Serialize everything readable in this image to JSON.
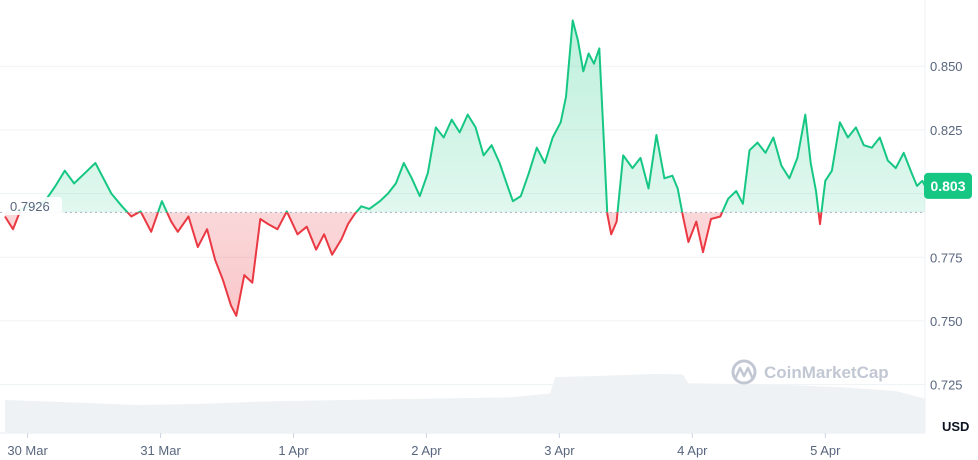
{
  "chart_data": {
    "type": "area",
    "watermark": "CoinMarketCap",
    "unit_label": "USD",
    "baseline": {
      "value": 0.7926,
      "label": "0.7926"
    },
    "current": {
      "value": 0.803,
      "label": "0.803"
    },
    "ylim": [
      0.706,
      0.876
    ],
    "y_ticks": [
      {
        "value": 0.725,
        "label": "0.725"
      },
      {
        "value": 0.75,
        "label": "0.750"
      },
      {
        "value": 0.775,
        "label": "0.775"
      },
      {
        "value": 0.8,
        "label": ""
      },
      {
        "value": 0.825,
        "label": "0.825"
      },
      {
        "value": 0.85,
        "label": "0.850"
      }
    ],
    "x_range": [
      0,
      6.92
    ],
    "x_ticks": [
      {
        "value": 0.17,
        "label": "30 Mar"
      },
      {
        "value": 1.17,
        "label": "31 Mar"
      },
      {
        "value": 2.17,
        "label": "1 Apr"
      },
      {
        "value": 3.17,
        "label": "2 Apr"
      },
      {
        "value": 4.17,
        "label": "3 Apr"
      },
      {
        "value": 5.17,
        "label": "4 Apr"
      },
      {
        "value": 6.17,
        "label": "5 Apr"
      }
    ],
    "colors": {
      "up": "#16c784",
      "down": "#ea3943",
      "up_fill": "#16c784",
      "down_fill": "#ea3943",
      "volume": "#eff2f5",
      "current_badge": "#16c784"
    },
    "price": [
      [
        0.0,
        0.791
      ],
      [
        0.06,
        0.786
      ],
      [
        0.12,
        0.794
      ],
      [
        0.2,
        0.795
      ],
      [
        0.3,
        0.797
      ],
      [
        0.38,
        0.803
      ],
      [
        0.45,
        0.809
      ],
      [
        0.52,
        0.804
      ],
      [
        0.6,
        0.808
      ],
      [
        0.68,
        0.812
      ],
      [
        0.74,
        0.806
      ],
      [
        0.8,
        0.8
      ],
      [
        0.88,
        0.795
      ],
      [
        0.95,
        0.791
      ],
      [
        1.02,
        0.793
      ],
      [
        1.1,
        0.785
      ],
      [
        1.18,
        0.797
      ],
      [
        1.25,
        0.789
      ],
      [
        1.3,
        0.785
      ],
      [
        1.38,
        0.791
      ],
      [
        1.45,
        0.779
      ],
      [
        1.52,
        0.786
      ],
      [
        1.58,
        0.774
      ],
      [
        1.64,
        0.766
      ],
      [
        1.7,
        0.756
      ],
      [
        1.74,
        0.752
      ],
      [
        1.8,
        0.768
      ],
      [
        1.86,
        0.765
      ],
      [
        1.92,
        0.79
      ],
      [
        1.98,
        0.788
      ],
      [
        2.05,
        0.786
      ],
      [
        2.12,
        0.793
      ],
      [
        2.2,
        0.784
      ],
      [
        2.27,
        0.787
      ],
      [
        2.34,
        0.778
      ],
      [
        2.4,
        0.784
      ],
      [
        2.46,
        0.776
      ],
      [
        2.53,
        0.782
      ],
      [
        2.58,
        0.788
      ],
      [
        2.63,
        0.792
      ],
      [
        2.68,
        0.795
      ],
      [
        2.74,
        0.794
      ],
      [
        2.82,
        0.797
      ],
      [
        2.88,
        0.8
      ],
      [
        2.94,
        0.804
      ],
      [
        3.0,
        0.812
      ],
      [
        3.06,
        0.806
      ],
      [
        3.12,
        0.799
      ],
      [
        3.18,
        0.808
      ],
      [
        3.24,
        0.826
      ],
      [
        3.3,
        0.822
      ],
      [
        3.36,
        0.829
      ],
      [
        3.42,
        0.824
      ],
      [
        3.48,
        0.831
      ],
      [
        3.54,
        0.826
      ],
      [
        3.6,
        0.815
      ],
      [
        3.66,
        0.819
      ],
      [
        3.72,
        0.812
      ],
      [
        3.78,
        0.803
      ],
      [
        3.82,
        0.797
      ],
      [
        3.88,
        0.799
      ],
      [
        3.94,
        0.808
      ],
      [
        4.0,
        0.818
      ],
      [
        4.06,
        0.812
      ],
      [
        4.12,
        0.822
      ],
      [
        4.18,
        0.828
      ],
      [
        4.22,
        0.838
      ],
      [
        4.27,
        0.868
      ],
      [
        4.31,
        0.86
      ],
      [
        4.35,
        0.848
      ],
      [
        4.39,
        0.855
      ],
      [
        4.43,
        0.851
      ],
      [
        4.47,
        0.857
      ],
      [
        4.5,
        0.825
      ],
      [
        4.53,
        0.792
      ],
      [
        4.56,
        0.784
      ],
      [
        4.6,
        0.789
      ],
      [
        4.65,
        0.815
      ],
      [
        4.72,
        0.81
      ],
      [
        4.78,
        0.814
      ],
      [
        4.84,
        0.802
      ],
      [
        4.9,
        0.823
      ],
      [
        4.96,
        0.806
      ],
      [
        5.02,
        0.807
      ],
      [
        5.06,
        0.802
      ],
      [
        5.1,
        0.791
      ],
      [
        5.14,
        0.781
      ],
      [
        5.2,
        0.789
      ],
      [
        5.25,
        0.777
      ],
      [
        5.31,
        0.79
      ],
      [
        5.38,
        0.791
      ],
      [
        5.44,
        0.798
      ],
      [
        5.5,
        0.801
      ],
      [
        5.55,
        0.796
      ],
      [
        5.6,
        0.817
      ],
      [
        5.66,
        0.82
      ],
      [
        5.72,
        0.816
      ],
      [
        5.78,
        0.822
      ],
      [
        5.84,
        0.811
      ],
      [
        5.9,
        0.806
      ],
      [
        5.96,
        0.814
      ],
      [
        6.02,
        0.831
      ],
      [
        6.06,
        0.812
      ],
      [
        6.1,
        0.801
      ],
      [
        6.13,
        0.788
      ],
      [
        6.17,
        0.805
      ],
      [
        6.22,
        0.809
      ],
      [
        6.28,
        0.828
      ],
      [
        6.34,
        0.822
      ],
      [
        6.4,
        0.826
      ],
      [
        6.46,
        0.819
      ],
      [
        6.52,
        0.818
      ],
      [
        6.58,
        0.822
      ],
      [
        6.64,
        0.813
      ],
      [
        6.7,
        0.81
      ],
      [
        6.76,
        0.816
      ],
      [
        6.82,
        0.808
      ],
      [
        6.86,
        0.803
      ],
      [
        6.9,
        0.805
      ],
      [
        6.92,
        0.803
      ]
    ],
    "volume": [
      [
        0.0,
        0.719
      ],
      [
        0.5,
        0.718
      ],
      [
        1.0,
        0.717
      ],
      [
        1.5,
        0.7175
      ],
      [
        2.0,
        0.7185
      ],
      [
        2.6,
        0.719
      ],
      [
        3.2,
        0.7195
      ],
      [
        3.8,
        0.72
      ],
      [
        4.1,
        0.7215
      ],
      [
        4.14,
        0.728
      ],
      [
        4.5,
        0.7285
      ],
      [
        4.9,
        0.7292
      ],
      [
        5.1,
        0.729
      ],
      [
        5.14,
        0.7255
      ],
      [
        5.8,
        0.725
      ],
      [
        6.3,
        0.724
      ],
      [
        6.7,
        0.7225
      ],
      [
        6.92,
        0.7195
      ]
    ]
  }
}
